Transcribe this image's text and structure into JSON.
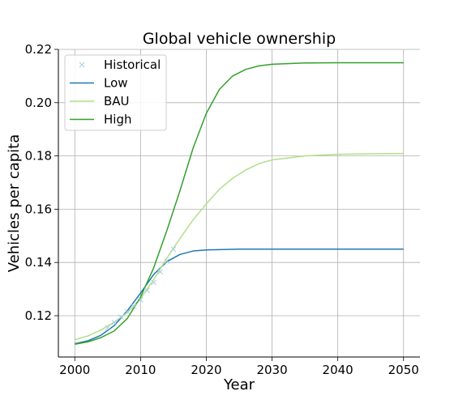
{
  "chart_data": {
    "type": "line",
    "title": "Global vehicle ownership",
    "xlabel": "Year",
    "ylabel": "Vehicles per capita",
    "xlim": [
      1997.5,
      2052.5
    ],
    "ylim": [
      0.1045,
      0.22
    ],
    "xticks": [
      "2000",
      "2010",
      "2020",
      "2030",
      "2040",
      "2050"
    ],
    "yticks": [
      "0.12",
      "0.14",
      "0.16",
      "0.18",
      "0.20",
      "0.22"
    ],
    "grid": true,
    "legend": "top-left",
    "historical": {
      "name": "Historical",
      "color": "#a6cee3",
      "marker": "x",
      "points": [
        {
          "x": 2005,
          "y": 0.1155
        },
        {
          "x": 2006,
          "y": 0.1175
        },
        {
          "x": 2007,
          "y": 0.1195
        },
        {
          "x": 2008,
          "y": 0.1215
        },
        {
          "x": 2009,
          "y": 0.1235
        },
        {
          "x": 2010,
          "y": 0.126
        },
        {
          "x": 2011,
          "y": 0.1295
        },
        {
          "x": 2012,
          "y": 0.1325
        },
        {
          "x": 2013,
          "y": 0.1365
        },
        {
          "x": 2014,
          "y": 0.1405
        },
        {
          "x": 2015,
          "y": 0.145
        }
      ]
    },
    "series": [
      {
        "name": "Low",
        "color": "#1f78b4",
        "points": [
          {
            "x": 2000,
            "y": 0.1095
          },
          {
            "x": 2002,
            "y": 0.1106
          },
          {
            "x": 2004,
            "y": 0.1127
          },
          {
            "x": 2006,
            "y": 0.1163
          },
          {
            "x": 2008,
            "y": 0.1219
          },
          {
            "x": 2010,
            "y": 0.1285
          },
          {
            "x": 2012,
            "y": 0.1355
          },
          {
            "x": 2014,
            "y": 0.1403
          },
          {
            "x": 2016,
            "y": 0.143
          },
          {
            "x": 2018,
            "y": 0.1443
          },
          {
            "x": 2020,
            "y": 0.1447
          },
          {
            "x": 2025,
            "y": 0.145
          },
          {
            "x": 2030,
            "y": 0.145
          },
          {
            "x": 2040,
            "y": 0.145
          },
          {
            "x": 2050,
            "y": 0.145
          }
        ]
      },
      {
        "name": "BAU",
        "color": "#b2df8a",
        "points": [
          {
            "x": 2000,
            "y": 0.111
          },
          {
            "x": 2002,
            "y": 0.1124
          },
          {
            "x": 2004,
            "y": 0.1147
          },
          {
            "x": 2006,
            "y": 0.1176
          },
          {
            "x": 2008,
            "y": 0.1212
          },
          {
            "x": 2010,
            "y": 0.1264
          },
          {
            "x": 2012,
            "y": 0.1336
          },
          {
            "x": 2014,
            "y": 0.1416
          },
          {
            "x": 2016,
            "y": 0.149
          },
          {
            "x": 2018,
            "y": 0.156
          },
          {
            "x": 2020,
            "y": 0.162
          },
          {
            "x": 2022,
            "y": 0.1675
          },
          {
            "x": 2024,
            "y": 0.1716
          },
          {
            "x": 2026,
            "y": 0.1747
          },
          {
            "x": 2028,
            "y": 0.1771
          },
          {
            "x": 2030,
            "y": 0.1785
          },
          {
            "x": 2035,
            "y": 0.18
          },
          {
            "x": 2040,
            "y": 0.1806
          },
          {
            "x": 2045,
            "y": 0.1808
          },
          {
            "x": 2050,
            "y": 0.1809
          }
        ]
      },
      {
        "name": "High",
        "color": "#33a02c",
        "points": [
          {
            "x": 2000,
            "y": 0.1093
          },
          {
            "x": 2002,
            "y": 0.1102
          },
          {
            "x": 2004,
            "y": 0.1118
          },
          {
            "x": 2006,
            "y": 0.1143
          },
          {
            "x": 2008,
            "y": 0.119
          },
          {
            "x": 2010,
            "y": 0.127
          },
          {
            "x": 2012,
            "y": 0.138
          },
          {
            "x": 2014,
            "y": 0.152
          },
          {
            "x": 2016,
            "y": 0.167
          },
          {
            "x": 2018,
            "y": 0.183
          },
          {
            "x": 2020,
            "y": 0.196
          },
          {
            "x": 2022,
            "y": 0.205
          },
          {
            "x": 2024,
            "y": 0.21
          },
          {
            "x": 2026,
            "y": 0.2125
          },
          {
            "x": 2028,
            "y": 0.2138
          },
          {
            "x": 2030,
            "y": 0.2144
          },
          {
            "x": 2035,
            "y": 0.2149
          },
          {
            "x": 2040,
            "y": 0.215
          },
          {
            "x": 2050,
            "y": 0.215
          }
        ]
      }
    ]
  }
}
